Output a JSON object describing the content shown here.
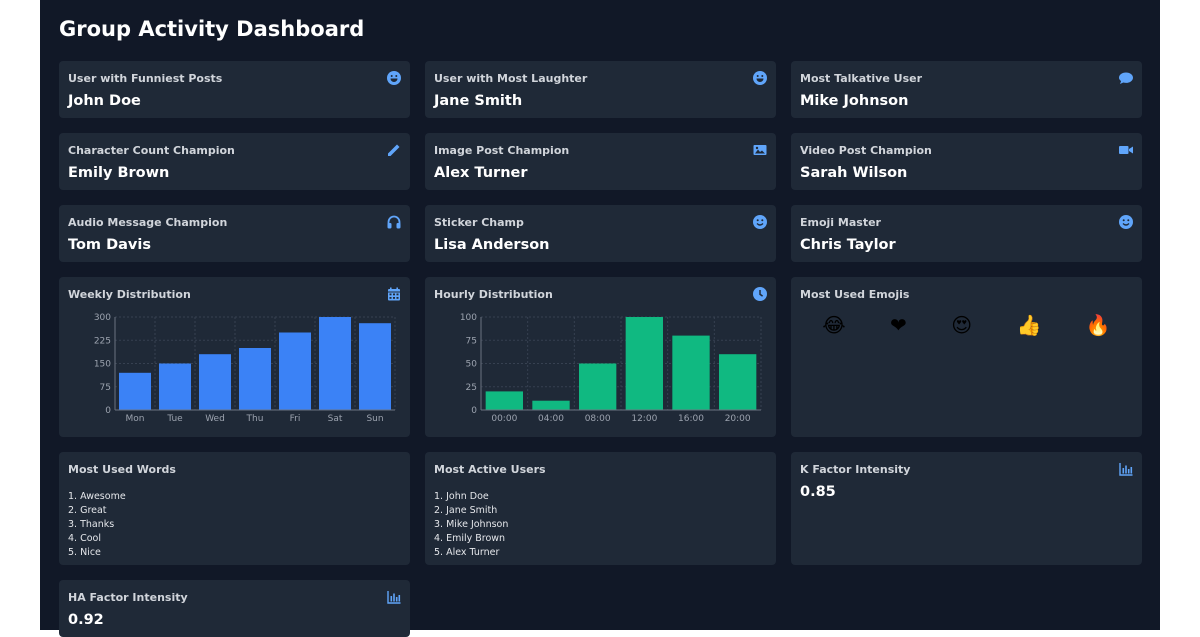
{
  "title": "Group Activity Dashboard",
  "stats": [
    {
      "label": "User with Funniest Posts",
      "value": "John Doe",
      "icon": "laugh-icon"
    },
    {
      "label": "User with Most Laughter",
      "value": "Jane Smith",
      "icon": "laugh-icon"
    },
    {
      "label": "Most Talkative User",
      "value": "Mike Johnson",
      "icon": "comment-icon"
    },
    {
      "label": "Character Count Champion",
      "value": "Emily Brown",
      "icon": "pencil-icon"
    },
    {
      "label": "Image Post Champion",
      "value": "Alex Turner",
      "icon": "image-icon"
    },
    {
      "label": "Video Post Champion",
      "value": "Sarah Wilson",
      "icon": "video-icon"
    },
    {
      "label": "Audio Message Champion",
      "value": "Tom Davis",
      "icon": "headphones-icon"
    },
    {
      "label": "Sticker Champ",
      "value": "Lisa Anderson",
      "icon": "smile-icon"
    },
    {
      "label": "Emoji Master",
      "value": "Chris Taylor",
      "icon": "smile-icon"
    }
  ],
  "weekly": {
    "label": "Weekly Distribution",
    "icon": "calendar-icon"
  },
  "hourly": {
    "label": "Hourly Distribution",
    "icon": "clock-icon"
  },
  "emojis": {
    "label": "Most Used Emojis",
    "items": [
      "😂",
      "❤",
      "😍",
      "👍",
      "🔥"
    ]
  },
  "words": {
    "label": "Most Used Words",
    "items": [
      "1. Awesome",
      "2. Great",
      "3. Thanks",
      "4. Cool",
      "5. Nice"
    ]
  },
  "users": {
    "label": "Most Active Users",
    "items": [
      "1. John Doe",
      "2. Jane Smith",
      "3. Mike Johnson",
      "4. Emily Brown",
      "5. Alex Turner"
    ]
  },
  "k_factor": {
    "label": "K Factor Intensity",
    "value": "0.85",
    "icon": "bar-chart-icon"
  },
  "ha_factor": {
    "label": "HA Factor Intensity",
    "value": "0.92",
    "icon": "bar-chart-icon"
  },
  "chart_data": [
    {
      "type": "bar",
      "categories": [
        "Mon",
        "Tue",
        "Wed",
        "Thu",
        "Fri",
        "Sat",
        "Sun"
      ],
      "values": [
        120,
        150,
        180,
        200,
        250,
        300,
        280
      ],
      "ylim": [
        0,
        300
      ],
      "yticks": [
        0,
        75,
        150,
        225,
        300
      ],
      "color": "#3b82f6",
      "grid": true
    },
    {
      "type": "bar",
      "categories": [
        "00:00",
        "04:00",
        "08:00",
        "12:00",
        "16:00",
        "20:00"
      ],
      "values": [
        20,
        10,
        50,
        100,
        80,
        60
      ],
      "ylim": [
        0,
        100
      ],
      "yticks": [
        0,
        25,
        50,
        75,
        100
      ],
      "color": "#10b981",
      "grid": true
    }
  ]
}
